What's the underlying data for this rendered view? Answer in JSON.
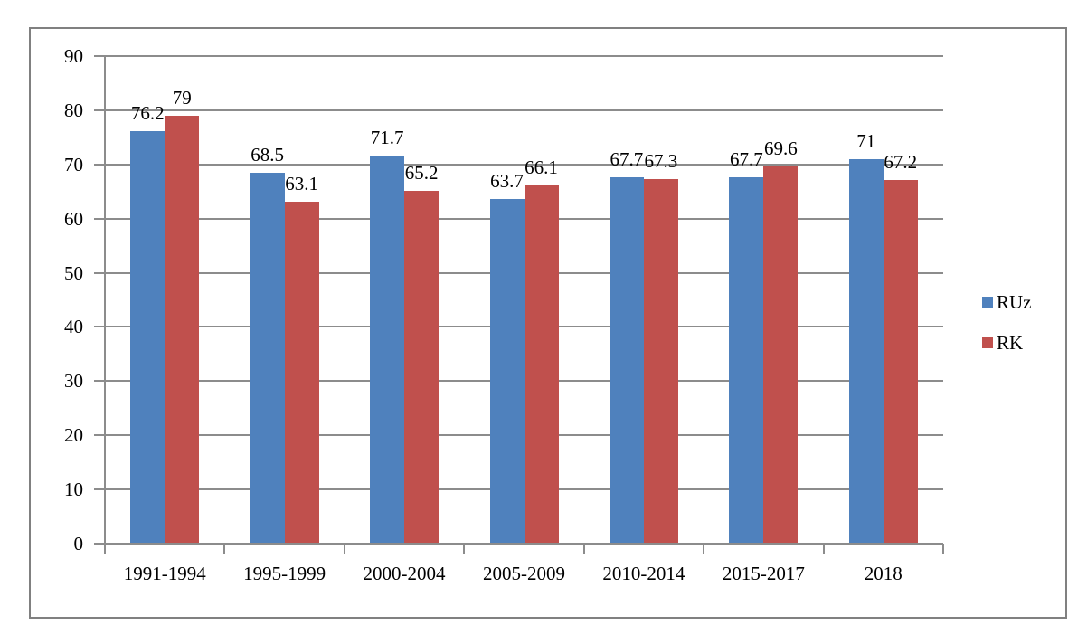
{
  "chart_data": {
    "type": "bar",
    "title": "",
    "categories": [
      "1991-1994",
      "1995-1999",
      "2000-2004",
      "2005-2009",
      "2010-2014",
      "2015-2017",
      "2018"
    ],
    "series": [
      {
        "name": "RUz",
        "color": "#4F81BD",
        "values": [
          76.2,
          68.5,
          71.7,
          63.7,
          67.7,
          67.7,
          71
        ],
        "labels": [
          "76.2",
          "68.5",
          "71.7",
          "63.7",
          "67.7",
          "67.7",
          "71"
        ]
      },
      {
        "name": "RK",
        "color": "#C0504D",
        "values": [
          79,
          63.1,
          65.2,
          66.1,
          67.3,
          69.6,
          67.2
        ],
        "labels": [
          "79",
          "63.1",
          "65.2",
          "66.1",
          "67.3",
          "69.6",
          "67.2"
        ]
      }
    ],
    "y_axis": {
      "min": 0,
      "max": 90,
      "step": 10,
      "tick_labels": [
        "0",
        "10",
        "20",
        "30",
        "40",
        "50",
        "60",
        "70",
        "80",
        "90"
      ]
    },
    "x_axis": {
      "label": ""
    },
    "legend": {
      "position": "right",
      "entries": [
        "RUz",
        "RK"
      ]
    },
    "grid": true,
    "colors": {
      "gridline": "#8C8C8C",
      "axis": "#8C8C8C",
      "frame_border": "#808080",
      "background": "#FFFFFF",
      "text": "#000000"
    }
  }
}
